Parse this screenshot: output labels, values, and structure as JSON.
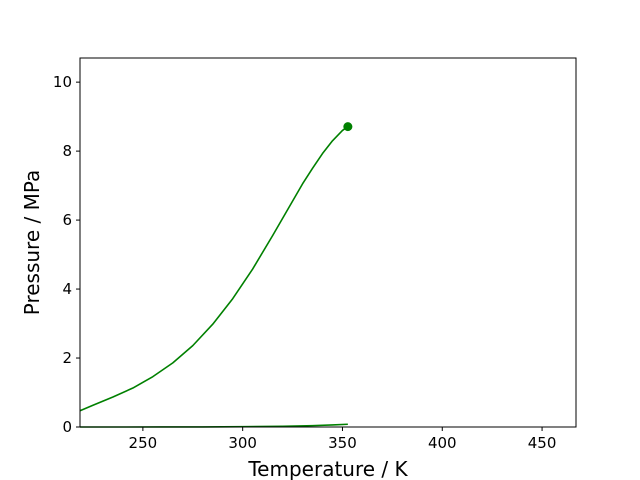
{
  "chart_data": {
    "type": "line",
    "title": "",
    "xlabel": "Temperature / K",
    "ylabel": "Pressure / MPa",
    "xlim": [
      218.5,
      467
    ],
    "ylim": [
      0,
      10.7
    ],
    "xticks": [
      250,
      300,
      350,
      400,
      450
    ],
    "yticks": [
      0,
      2,
      4,
      6,
      8,
      10
    ],
    "grid": false,
    "legend": "none",
    "color": "#008000",
    "series": [
      {
        "x": [
          218.5,
          225,
          235,
          245,
          255,
          265,
          275,
          285,
          295,
          305,
          315,
          320,
          325,
          330,
          335,
          340,
          345,
          350,
          352.7
        ],
        "y": [
          0.47,
          0.63,
          0.87,
          1.13,
          1.46,
          1.86,
          2.36,
          2.98,
          3.72,
          4.58,
          5.55,
          6.05,
          6.55,
          7.05,
          7.5,
          7.93,
          8.3,
          8.6,
          8.71
        ]
      },
      {
        "x": [
          218.5,
          240,
          260,
          280,
          300,
          320,
          335,
          345,
          352.7
        ],
        "y": [
          0.0,
          0.0,
          0.001,
          0.003,
          0.008,
          0.02,
          0.04,
          0.06,
          0.08
        ]
      }
    ],
    "markers": [
      {
        "x": 352.7,
        "y": 8.71
      }
    ]
  }
}
